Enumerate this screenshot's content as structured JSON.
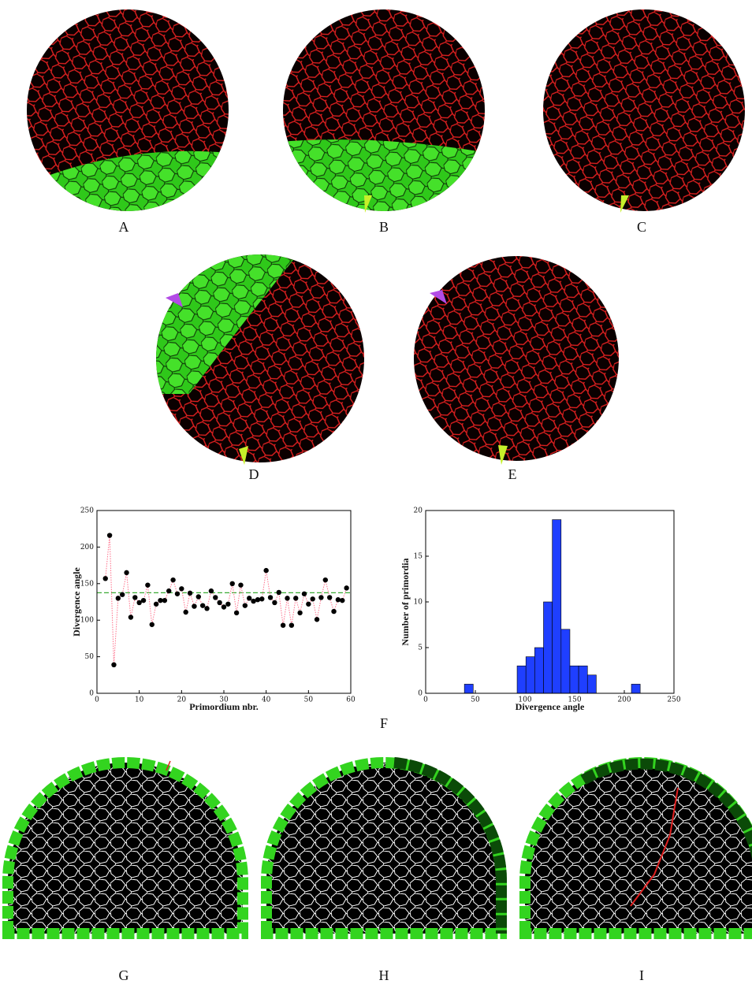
{
  "panel_labels": [
    "A",
    "B",
    "C",
    "D",
    "E",
    "F",
    "G",
    "H",
    "I"
  ],
  "chart_data": [
    {
      "type": "line",
      "x_label": "Primordium nbr.",
      "y_label": "Divergence angle",
      "x": [
        2,
        3,
        4,
        5,
        6,
        7,
        8,
        9,
        10,
        11,
        12,
        13,
        14,
        15,
        16,
        17,
        18,
        19,
        20,
        21,
        22,
        23,
        24,
        25,
        26,
        27,
        28,
        29,
        30,
        31,
        32,
        33,
        34,
        35,
        36,
        37,
        38,
        39,
        40,
        41,
        42,
        43,
        44,
        45,
        46,
        47,
        48,
        49,
        50,
        51,
        52,
        53,
        54,
        55,
        56,
        57,
        58,
        59
      ],
      "values": [
        157,
        216,
        39,
        130,
        135,
        165,
        104,
        131,
        124,
        127,
        148,
        94,
        122,
        127,
        127,
        140,
        155,
        136,
        143,
        111,
        137,
        119,
        132,
        120,
        116,
        140,
        131,
        124,
        118,
        122,
        150,
        110,
        148,
        120,
        130,
        126,
        128,
        129,
        168,
        131,
        124,
        138,
        93,
        130,
        93,
        130,
        110,
        136,
        122,
        129,
        101,
        131,
        155,
        131,
        112,
        128,
        127,
        144
      ],
      "marker_color": "#000000",
      "line_color": "#ff6f8a",
      "reference_line": 137.5,
      "reference_color": "#3aaa35",
      "xlim": [
        0,
        60
      ],
      "xticks": [
        0,
        10,
        20,
        30,
        40,
        50,
        60
      ],
      "ylim": [
        0,
        250
      ],
      "yticks": [
        0,
        50,
        100,
        150,
        200,
        250
      ]
    },
    {
      "type": "histogram",
      "x_label": "Divergence angle",
      "y_label": "Number of primordia",
      "bins": [
        39,
        47.85,
        56.7,
        65.55,
        74.4,
        83.25,
        92.1,
        100.95,
        109.8,
        118.65,
        127.5,
        136.35,
        145.2,
        154.05,
        162.9,
        171.75,
        180.6,
        189.45,
        198.3,
        207.15,
        216
      ],
      "counts": [
        1,
        0,
        0,
        0,
        0,
        0,
        3,
        4,
        5,
        10,
        19,
        7,
        3,
        3,
        2,
        0,
        0,
        0,
        0,
        1
      ],
      "color": "#1f3fff",
      "xlim": [
        0,
        250
      ],
      "xticks": [
        0,
        50,
        100,
        150,
        200,
        250
      ],
      "ylim": [
        0,
        20
      ],
      "yticks": [
        0,
        5,
        10,
        15,
        20
      ]
    }
  ]
}
